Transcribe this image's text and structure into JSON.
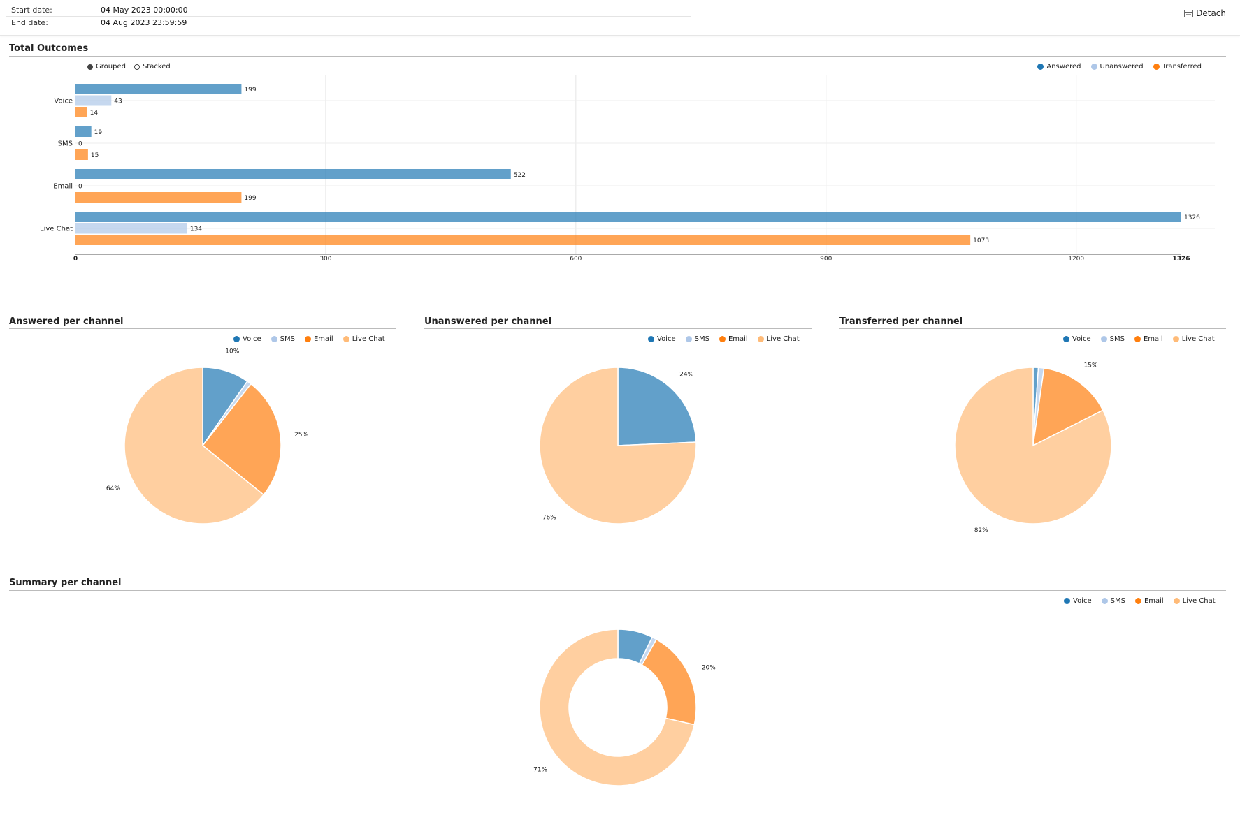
{
  "header": {
    "start_label": "Start date:",
    "start_value": "04 May 2023 00:00:00",
    "end_label": "End date:",
    "end_value": "04 Aug 2023 23:59:59",
    "detach_label": "Detach"
  },
  "sections": {
    "total_title": "Total Outcomes",
    "answered_title": "Answered per channel",
    "unanswered_title": "Unanswered per channel",
    "transferred_title": "Transferred per channel",
    "summary_title": "Summary per channel"
  },
  "toggles": {
    "grouped": "Grouped",
    "stacked": "Stacked",
    "selected": "grouped"
  },
  "colors": {
    "answered": "#1f77b4",
    "unanswered": "#aec7e8",
    "transferred": "#ff7f0e",
    "voice": "#1f77b4",
    "sms": "#aec7e8",
    "email": "#ff7f0e",
    "live_chat": "#ffbb78"
  },
  "chart_data": [
    {
      "type": "bar",
      "orientation": "horizontal",
      "title": "Total Outcomes",
      "categories": [
        "Voice",
        "SMS",
        "Email",
        "Live Chat"
      ],
      "series": [
        {
          "name": "Answered",
          "values": [
            199,
            19,
            522,
            1326
          ]
        },
        {
          "name": "Unanswered",
          "values": [
            43,
            0,
            0,
            134
          ]
        },
        {
          "name": "Transferred",
          "values": [
            14,
            15,
            199,
            1073
          ]
        }
      ],
      "xlim": [
        0,
        1326
      ],
      "xticks": [
        "0",
        "300",
        "600",
        "900",
        "1200",
        "1326"
      ],
      "grid": true,
      "legend": "top-right"
    },
    {
      "type": "pie",
      "title": "Answered per channel",
      "labels": [
        "Voice",
        "SMS",
        "Email",
        "Live Chat"
      ],
      "values": [
        199,
        19,
        522,
        1326
      ],
      "shown_labels": [
        "10%",
        "",
        "25%",
        "64%"
      ],
      "legend": "top-right"
    },
    {
      "type": "pie",
      "title": "Unanswered per channel",
      "labels": [
        "Voice",
        "SMS",
        "Email",
        "Live Chat"
      ],
      "values": [
        43,
        0,
        0,
        134
      ],
      "shown_labels": [
        "24%",
        "",
        "",
        "76%"
      ],
      "legend": "top-right"
    },
    {
      "type": "pie",
      "title": "Transferred per channel",
      "labels": [
        "Voice",
        "SMS",
        "Email",
        "Live Chat"
      ],
      "values": [
        14,
        15,
        199,
        1073
      ],
      "shown_labels": [
        "",
        "",
        "15%",
        "82%"
      ],
      "legend": "top-right"
    },
    {
      "type": "donut",
      "title": "Summary per channel",
      "labels": [
        "Voice",
        "SMS",
        "Email",
        "Live Chat"
      ],
      "values": [
        256,
        34,
        721,
        2533
      ],
      "shown_labels": [
        "",
        "",
        "20%",
        "71%"
      ],
      "legend": "top-right"
    }
  ]
}
